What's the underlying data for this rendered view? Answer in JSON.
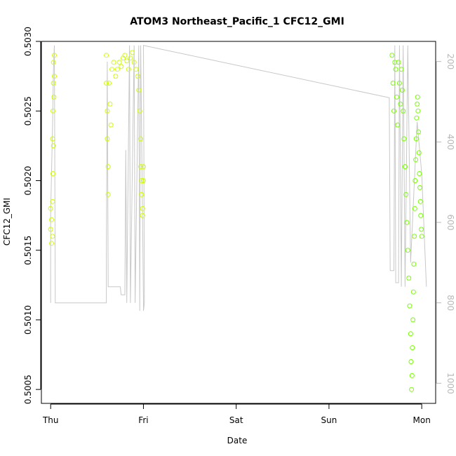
{
  "chart_data": {
    "type": "scatter",
    "title": "ATOM3 Northeast_Pacific_1 CFC12_GMI",
    "xlabel": "Date",
    "ylabel": "CFC12_GMI",
    "x_ticks": [
      "Thu",
      "Fri",
      "Sat",
      "Sun",
      "Mon"
    ],
    "x_range_days": [
      -0.1,
      4.15
    ],
    "y_ticks": [
      "0.5005",
      "0.5010",
      "0.5015",
      "0.5020",
      "0.5025",
      "0.5030"
    ],
    "ylim": [
      0.5004,
      0.503
    ],
    "y2_ticks": [
      "200",
      "400",
      "600",
      "800",
      "1000"
    ],
    "y2lim": [
      1050,
      150
    ],
    "grid": false,
    "legend": "none",
    "colors": {
      "series_first_day": "#ccff00",
      "series_last_day": "#77ff00",
      "pressure_line": "#c8c8c8",
      "axis": "#000000",
      "right_axis": "#b8b8b8"
    },
    "series": [
      {
        "color": "#ccff00",
        "points": [
          [
            0.0,
            0.5018
          ],
          [
            0.0,
            0.50165
          ],
          [
            0.01,
            0.50155
          ],
          [
            0.01,
            0.50172
          ],
          [
            0.02,
            0.5016
          ],
          [
            0.02,
            0.5023
          ],
          [
            0.025,
            0.5025
          ],
          [
            0.03,
            0.5027
          ],
          [
            0.03,
            0.50285
          ],
          [
            0.04,
            0.5029
          ],
          [
            0.04,
            0.50275
          ],
          [
            0.035,
            0.5026
          ],
          [
            0.03,
            0.50225
          ],
          [
            0.025,
            0.50205
          ],
          [
            0.02,
            0.50185
          ],
          [
            0.6,
            0.5029
          ],
          [
            0.6,
            0.5027
          ],
          [
            0.61,
            0.5025
          ],
          [
            0.61,
            0.5023
          ],
          [
            0.62,
            0.5021
          ],
          [
            0.62,
            0.5019
          ],
          [
            0.63,
            0.5027
          ],
          [
            0.64,
            0.50255
          ],
          [
            0.65,
            0.5024
          ],
          [
            0.66,
            0.5028
          ],
          [
            0.68,
            0.50285
          ],
          [
            0.7,
            0.50275
          ],
          [
            0.72,
            0.5028
          ],
          [
            0.74,
            0.50285
          ],
          [
            0.76,
            0.50282
          ],
          [
            0.78,
            0.50288
          ],
          [
            0.8,
            0.5029
          ],
          [
            0.82,
            0.50286
          ],
          [
            0.84,
            0.5028
          ],
          [
            0.86,
            0.50288
          ],
          [
            0.88,
            0.50292
          ],
          [
            0.9,
            0.50285
          ],
          [
            0.92,
            0.5028
          ],
          [
            0.94,
            0.50275
          ],
          [
            0.95,
            0.50265
          ],
          [
            0.96,
            0.5025
          ],
          [
            0.97,
            0.5023
          ],
          [
            0.97,
            0.5021
          ],
          [
            0.98,
            0.502
          ],
          [
            0.98,
            0.5019
          ],
          [
            0.99,
            0.5018
          ],
          [
            0.99,
            0.50175
          ],
          [
            1.0,
            0.5021
          ],
          [
            1.0,
            0.502
          ]
        ]
      },
      {
        "color": "#77ff00",
        "points": [
          [
            3.68,
            0.5029
          ],
          [
            3.69,
            0.5027
          ],
          [
            3.7,
            0.5025
          ],
          [
            3.71,
            0.50285
          ],
          [
            3.72,
            0.5028
          ],
          [
            3.73,
            0.5026
          ],
          [
            3.74,
            0.5024
          ],
          [
            3.75,
            0.50285
          ],
          [
            3.76,
            0.5027
          ],
          [
            3.77,
            0.50255
          ],
          [
            3.78,
            0.5028
          ],
          [
            3.79,
            0.50265
          ],
          [
            3.8,
            0.5025
          ],
          [
            3.81,
            0.5023
          ],
          [
            3.82,
            0.5021
          ],
          [
            3.83,
            0.5019
          ],
          [
            3.84,
            0.5017
          ],
          [
            3.85,
            0.5015
          ],
          [
            3.86,
            0.5013
          ],
          [
            3.87,
            0.5011
          ],
          [
            3.88,
            0.5009
          ],
          [
            3.885,
            0.5007
          ],
          [
            3.89,
            0.5005
          ],
          [
            3.895,
            0.5006
          ],
          [
            3.9,
            0.5008
          ],
          [
            3.905,
            0.501
          ],
          [
            3.91,
            0.5012
          ],
          [
            3.915,
            0.5014
          ],
          [
            3.92,
            0.5016
          ],
          [
            3.925,
            0.5018
          ],
          [
            3.93,
            0.502
          ],
          [
            3.935,
            0.50215
          ],
          [
            3.94,
            0.5023
          ],
          [
            3.945,
            0.50245
          ],
          [
            3.95,
            0.50255
          ],
          [
            3.955,
            0.5026
          ],
          [
            3.96,
            0.5025
          ],
          [
            3.965,
            0.50235
          ],
          [
            3.97,
            0.5022
          ],
          [
            3.975,
            0.50205
          ],
          [
            3.98,
            0.50195
          ],
          [
            3.985,
            0.50185
          ],
          [
            3.99,
            0.50175
          ],
          [
            3.995,
            0.50165
          ],
          [
            4.0,
            0.5016
          ]
        ]
      }
    ],
    "pressure_line": [
      [
        0.0,
        800
      ],
      [
        0.0,
        580
      ],
      [
        0.02,
        360
      ],
      [
        0.03,
        220
      ],
      [
        0.04,
        160
      ],
      [
        0.05,
        800
      ],
      [
        0.6,
        800
      ],
      [
        0.6,
        690
      ],
      [
        0.61,
        200
      ],
      [
        0.62,
        760
      ],
      [
        0.75,
        760
      ],
      [
        0.76,
        780
      ],
      [
        0.8,
        780
      ],
      [
        0.81,
        420
      ],
      [
        0.82,
        800
      ],
      [
        0.85,
        160
      ],
      [
        0.86,
        800
      ],
      [
        0.9,
        160
      ],
      [
        0.91,
        800
      ],
      [
        0.95,
        160
      ],
      [
        0.96,
        820
      ],
      [
        0.97,
        160
      ],
      [
        1.0,
        800
      ],
      [
        1.0,
        820
      ],
      [
        1.01,
        800
      ],
      [
        1.0,
        160
      ],
      [
        3.65,
        290
      ],
      [
        3.66,
        720
      ],
      [
        3.7,
        720
      ],
      [
        3.71,
        160
      ],
      [
        3.72,
        750
      ],
      [
        3.75,
        750
      ],
      [
        3.76,
        160
      ],
      [
        3.78,
        760
      ],
      [
        3.8,
        160
      ],
      [
        3.82,
        760
      ],
      [
        3.85,
        160
      ],
      [
        3.88,
        700
      ],
      [
        3.95,
        350
      ],
      [
        4.0,
        480
      ],
      [
        4.05,
        760
      ]
    ]
  }
}
